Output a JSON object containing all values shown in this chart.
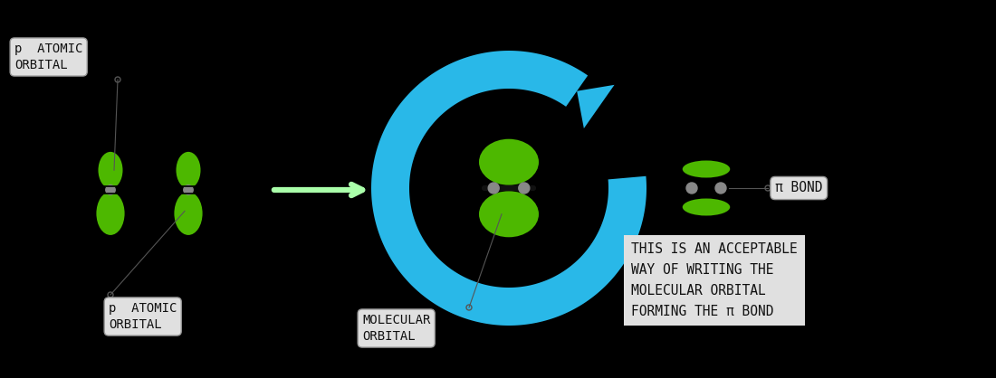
{
  "bg_color": "#000000",
  "green_color": "#4db800",
  "gray_color": "#888888",
  "dark_gray": "#555555",
  "blue_color": "#29b8e8",
  "light_green_arrow": "#aaffaa",
  "box_color": "#e0e0e0",
  "text_color": "#111111",
  "title_text": "p  ATOMIC\nORBITAL",
  "title2_text": "p  ATOMIC\nORBITAL",
  "mol_orbital_text": "MOLECULAR\nORBITAL",
  "pi_bond_text": "π BOND",
  "info_text": "THIS IS AN ACCEPTABLE\nWAY OF WRITING THE\nMOLECULAR ORBITAL\nFORMING THE π BOND"
}
